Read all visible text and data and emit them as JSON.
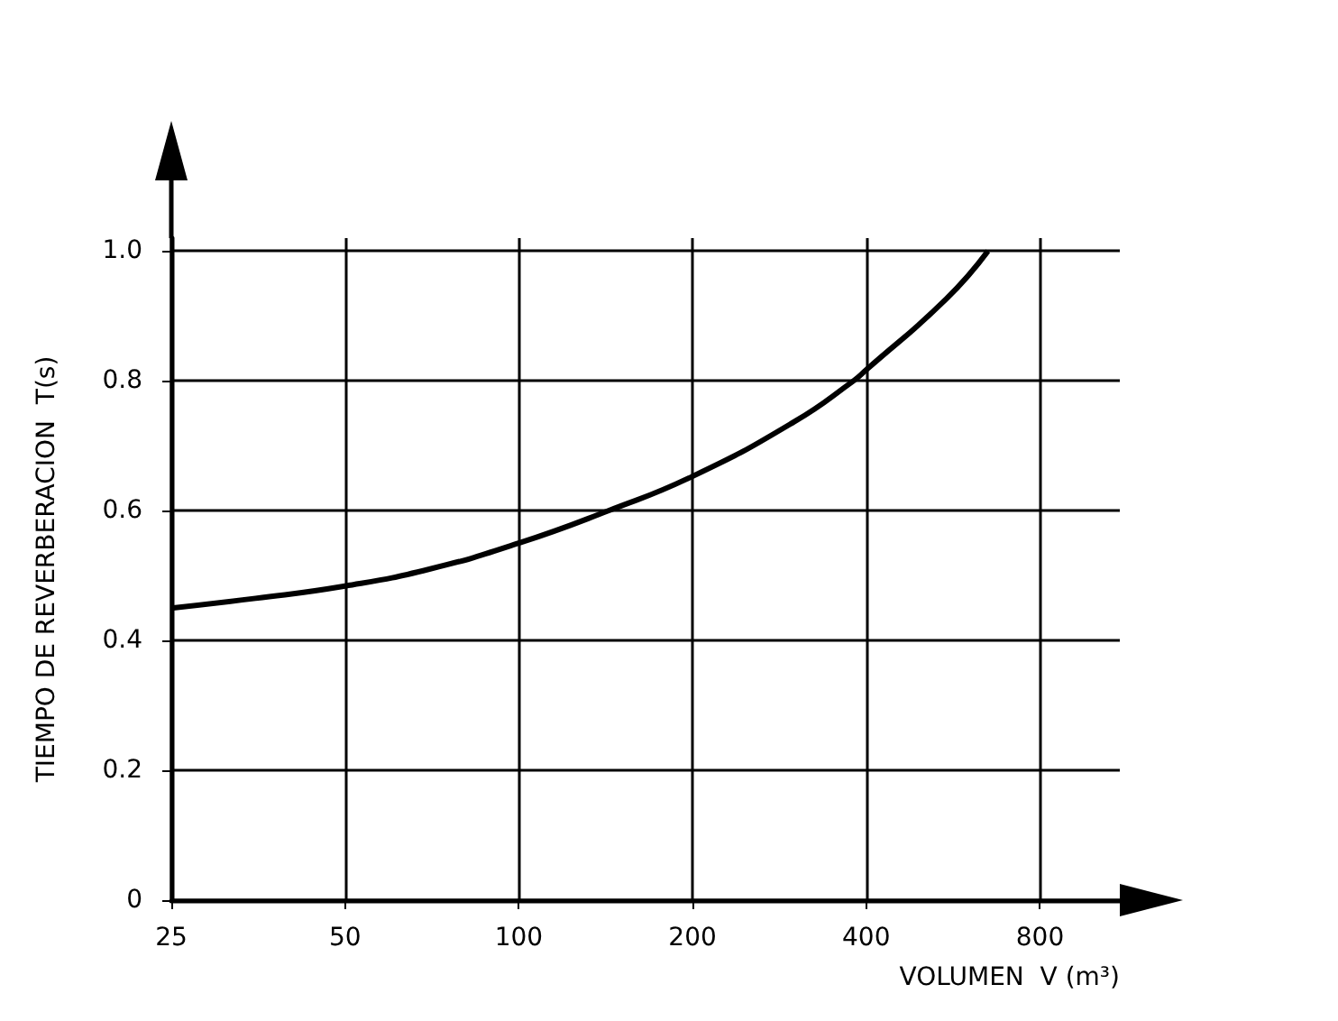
{
  "chart_data": {
    "type": "line",
    "xlabel": "VOLUMEN  V (m³)",
    "ylabel": "TIEMPO DE REVERBERACION  T(s)",
    "x": [
      25,
      35,
      50,
      70,
      100,
      143,
      200,
      300,
      380,
      400,
      550,
      650
    ],
    "series": [
      {
        "color": "#000000",
        "values": [
          0.45,
          0.465,
          0.484,
          0.51,
          0.55,
          0.6,
          0.653,
          0.737,
          0.8,
          0.817,
          0.926,
          1.0
        ]
      }
    ],
    "xlim": [
      25,
      1100
    ],
    "xticks": [
      25,
      50,
      100,
      200,
      400,
      800
    ],
    "ylim": [
      0,
      1.02
    ],
    "yticks": [
      0,
      0.2,
      0.4,
      0.6,
      0.8,
      {
        "value": 1,
        "label": "1.0"
      }
    ],
    "log": "x",
    "grid": true,
    "marker": "none",
    "line_style": "solid"
  }
}
